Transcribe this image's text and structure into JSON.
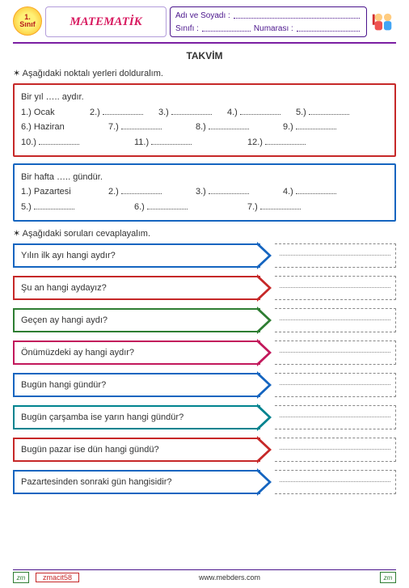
{
  "header": {
    "grade_num": "1.",
    "grade_label": "Sınıf",
    "subject": "MATEMATİK",
    "name_label": "Adı ve Soyadı :",
    "class_label": "Sınıfı :",
    "number_label": "Numarası :"
  },
  "title": "TAKVİM",
  "instruction1": "Aşağıdaki noktalı yerleri dolduralım.",
  "instruction2": "Aşağıdaki soruları cevaplayalım.",
  "box1": {
    "line1": "Bir yıl  …..  aydır.",
    "items": [
      "1.) Ocak",
      "2.)",
      "3.)",
      "4.)",
      "5.)",
      "6.) Haziran",
      "7.)",
      "8.)",
      "9.)",
      "10.)",
      "11.)",
      "12.)"
    ]
  },
  "box2": {
    "line1": "Bir hafta  …..  gündür.",
    "items": [
      "1.) Pazartesi",
      "2.)",
      "3.)",
      "4.)",
      "5.)",
      "6.)",
      "7.)"
    ]
  },
  "questions": [
    {
      "text": "Yılın ilk ayı hangi aydır?",
      "color": "blue"
    },
    {
      "text": "Şu an hangi aydayız?",
      "color": "red"
    },
    {
      "text": "Geçen ay hangi aydı?",
      "color": "green"
    },
    {
      "text": "Önümüzdeki ay  hangi aydır?",
      "color": "pink"
    },
    {
      "text": "Bugün hangi gündür?",
      "color": "blue"
    },
    {
      "text": "Bugün çarşamba ise yarın hangi gündür?",
      "color": "teal"
    },
    {
      "text": "Bugün pazar ise dün hangi gündü?",
      "color": "red"
    },
    {
      "text": "Pazartesinden  sonraki gün hangisidir?",
      "color": "blue"
    }
  ],
  "footer": {
    "sig": "zm",
    "author": "zmacit58",
    "site": "www.mebders.com"
  },
  "colors": {
    "blue": "#1565c0",
    "red": "#c62828",
    "green": "#2e7d32",
    "pink": "#c2185b",
    "teal": "#00838f",
    "purple": "#4a148c"
  }
}
